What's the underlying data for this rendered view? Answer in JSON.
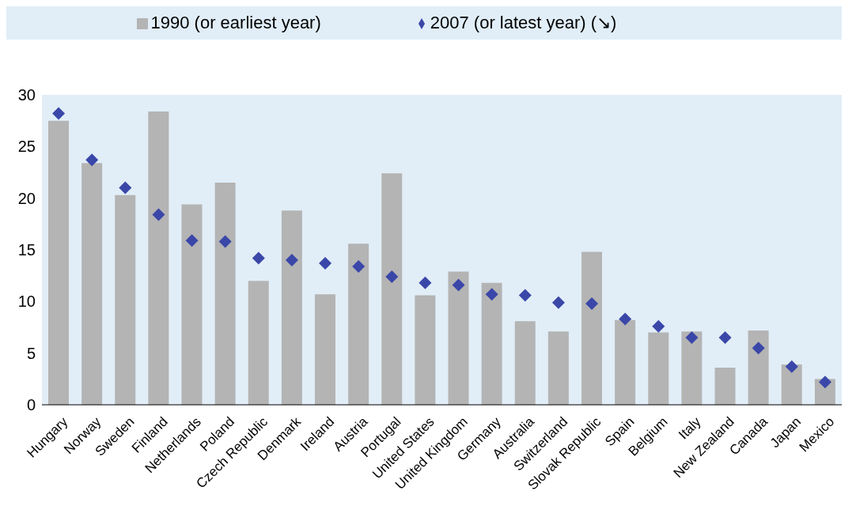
{
  "chart_data": {
    "type": "bar",
    "categories": [
      "Hungary",
      "Norway",
      "Sweden",
      "Finland",
      "Netherlands",
      "Poland",
      "Czech Republic",
      "Denmark",
      "Ireland",
      "Austria",
      "Portugal",
      "United States",
      "United Kingdom",
      "Germany",
      "Australia",
      "Switzerland",
      "Slovak Republic",
      "Spain",
      "Belgium",
      "Italy",
      "New Zealand",
      "Canada",
      "Japan",
      "Mexico"
    ],
    "series": [
      {
        "name": "1990 (or earliest year)",
        "color": "#b4b4b4",
        "values": [
          27.5,
          23.4,
          20.3,
          28.4,
          19.4,
          21.5,
          12.0,
          18.8,
          10.7,
          15.6,
          22.4,
          10.6,
          12.9,
          11.8,
          8.1,
          7.1,
          14.8,
          8.2,
          7.0,
          7.1,
          3.6,
          7.2,
          3.9,
          2.5
        ]
      },
      {
        "name": "2007 (or latest year) (↘)",
        "type": "scatter",
        "marker": "diamond",
        "color": "#3a47a8",
        "values": [
          28.2,
          23.7,
          21.0,
          18.4,
          15.9,
          15.8,
          14.2,
          14.0,
          13.7,
          13.4,
          12.4,
          11.8,
          11.6,
          10.7,
          10.6,
          9.9,
          9.8,
          8.3,
          7.6,
          6.5,
          6.5,
          5.5,
          3.7,
          2.2
        ]
      }
    ],
    "ylim": [
      0,
      30
    ],
    "yticks": [
      0,
      5,
      10,
      15,
      20,
      25,
      30
    ],
    "grid": false,
    "legend": "top"
  }
}
